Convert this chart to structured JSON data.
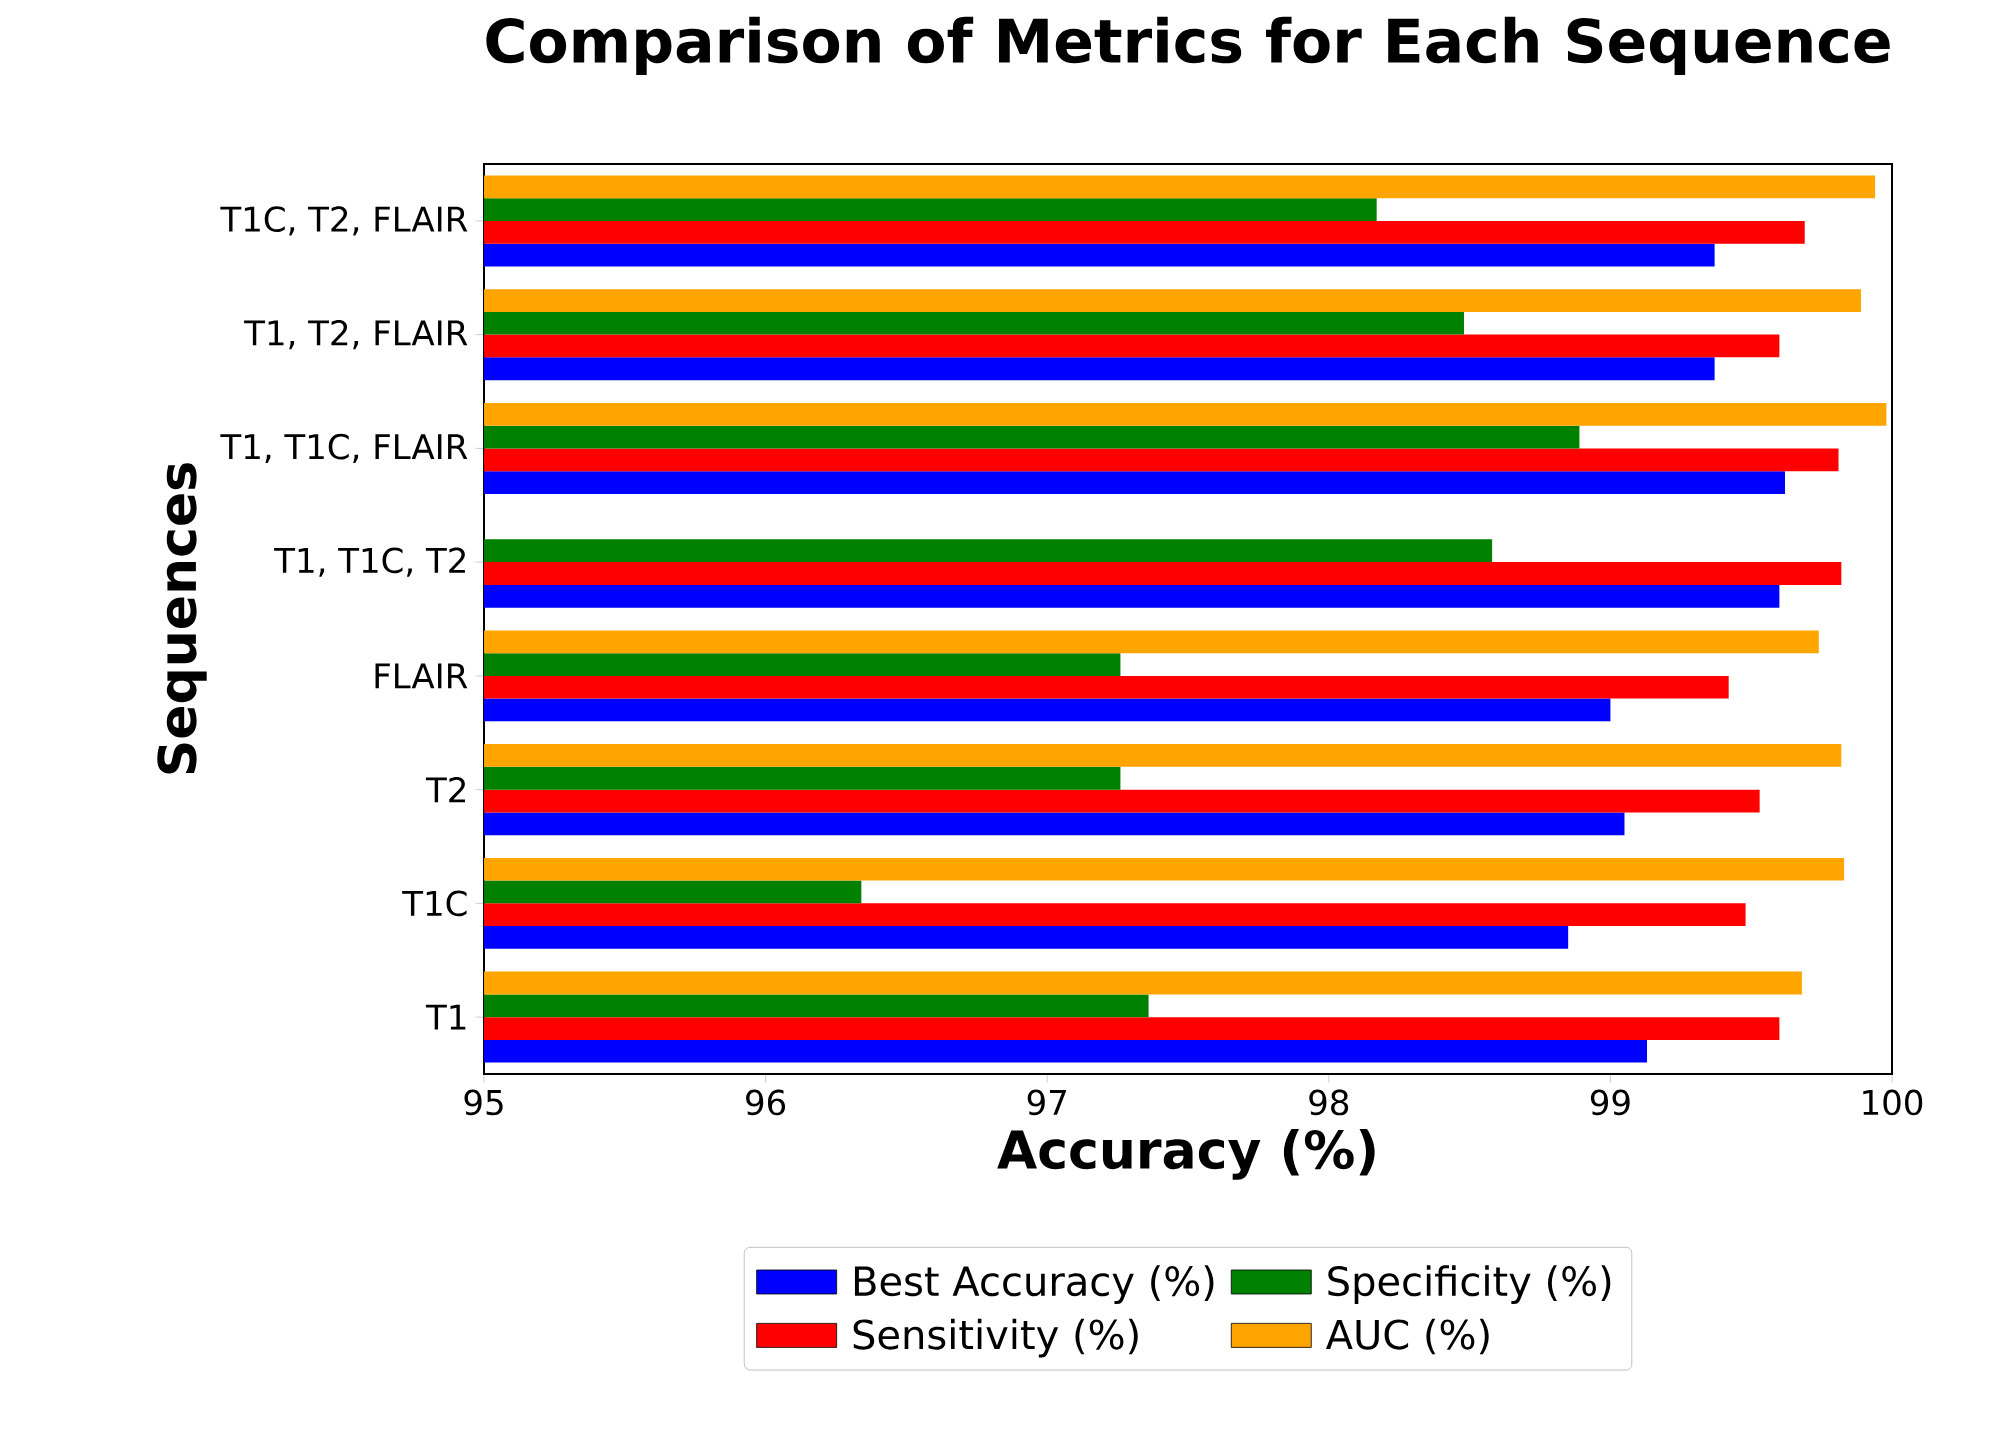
{
  "chart_data": {
    "type": "bar",
    "orientation": "horizontal",
    "title": "Comparison of Metrics for Each Sequence",
    "xlabel": "Accuracy (%)",
    "ylabel": "Sequences",
    "categories": [
      "T1C, T2, FLAIR",
      "T1, T2, FLAIR",
      "T1, T1C, FLAIR",
      "T1, T1C, T2",
      "FLAIR",
      "T2",
      "T1C",
      "T1"
    ],
    "series": [
      {
        "name": "Best Accuracy (%)",
        "color": "#0000ff",
        "values": [
          99.37,
          99.37,
          99.62,
          99.6,
          99.0,
          99.05,
          98.85,
          99.13
        ]
      },
      {
        "name": "Sensitivity (%)",
        "color": "#ff0000",
        "values": [
          99.69,
          99.6,
          99.81,
          99.82,
          99.42,
          99.53,
          99.48,
          99.6
        ]
      },
      {
        "name": "Specificity (%)",
        "color": "#008000",
        "values": [
          98.17,
          98.48,
          98.89,
          98.58,
          97.26,
          97.26,
          96.34,
          97.36
        ]
      },
      {
        "name": "AUC (%)",
        "color": "#ffa500",
        "values": [
          99.94,
          99.89,
          99.98,
          null,
          99.74,
          99.82,
          99.83,
          99.68
        ]
      }
    ],
    "xlim": [
      95,
      100
    ],
    "xticks": [
      95,
      96,
      97,
      98,
      99,
      100
    ],
    "legend": "bottom",
    "grid": false
  }
}
